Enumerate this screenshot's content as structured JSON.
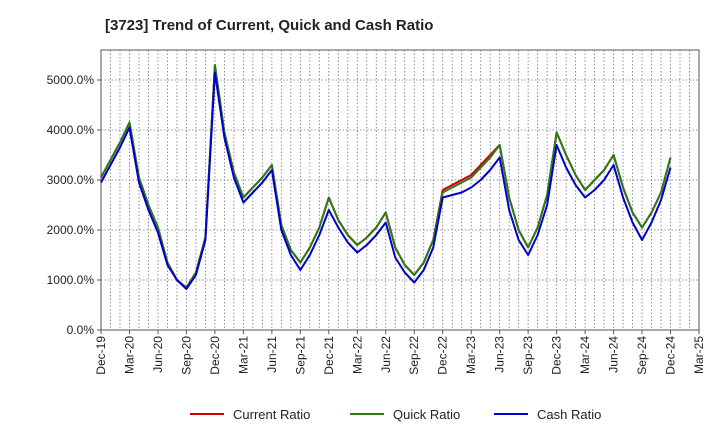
{
  "chart_data": {
    "type": "line",
    "title": "[3723]  Trend of Current, Quick and Cash Ratio",
    "xlabel": "",
    "ylabel": "",
    "ylim": [
      0,
      5600
    ],
    "y_ticks": [
      0,
      1000,
      2000,
      3000,
      4000,
      5000
    ],
    "y_tick_labels": [
      "0.0%",
      "1000.0%",
      "2000.0%",
      "3000.0%",
      "4000.0%",
      "5000.0%"
    ],
    "x_tick_labels": [
      "Dec-19",
      "Mar-20",
      "Jun-20",
      "Sep-20",
      "Dec-20",
      "Mar-21",
      "Jun-21",
      "Sep-21",
      "Dec-21",
      "Mar-22",
      "Jun-22",
      "Sep-22",
      "Dec-22",
      "Mar-23",
      "Jun-23",
      "Sep-23",
      "Dec-23",
      "Mar-24",
      "Jun-24",
      "Sep-24",
      "Dec-24",
      "Mar-25"
    ],
    "x": [
      "Dec-19",
      "Jan-20",
      "Feb-20",
      "Mar-20",
      "Apr-20",
      "May-20",
      "Jun-20",
      "Jul-20",
      "Aug-20",
      "Sep-20",
      "Oct-20",
      "Nov-20",
      "Dec-20",
      "Jan-21",
      "Feb-21",
      "Mar-21",
      "Apr-21",
      "May-21",
      "Jun-21",
      "Jul-21",
      "Aug-21",
      "Sep-21",
      "Oct-21",
      "Nov-21",
      "Dec-21",
      "Jan-22",
      "Feb-22",
      "Mar-22",
      "Apr-22",
      "May-22",
      "Jun-22",
      "Jul-22",
      "Aug-22",
      "Sep-22",
      "Oct-22",
      "Nov-22",
      "Dec-22",
      "Jan-23",
      "Feb-23",
      "Mar-23",
      "Apr-23",
      "May-23",
      "Jun-23",
      "Jul-23",
      "Aug-23",
      "Sep-23",
      "Oct-23",
      "Nov-23",
      "Dec-23",
      "Jan-24",
      "Feb-24",
      "Mar-24",
      "Apr-24",
      "May-24",
      "Jun-24",
      "Jul-24",
      "Aug-24",
      "Sep-24",
      "Oct-24",
      "Nov-24",
      "Dec-24"
    ],
    "grid": true,
    "legend_position": "bottom",
    "series": [
      {
        "name": "Current Ratio",
        "color": "#cc0000",
        "values": [
          3050,
          3400,
          3750,
          4150,
          3050,
          2500,
          2050,
          1350,
          1000,
          850,
          1150,
          1850,
          5300,
          3950,
          3150,
          2650,
          2850,
          3050,
          3300,
          2100,
          1600,
          1350,
          1650,
          2050,
          2650,
          2200,
          1900,
          1700,
          1850,
          2050,
          2350,
          1650,
          1300,
          1100,
          1350,
          1800,
          2800,
          2900,
          3000,
          3100,
          3300,
          3500,
          3700,
          2650,
          2000,
          1650,
          2050,
          2700,
          3950,
          3500,
          3100,
          2800,
          3000,
          3200,
          3500,
          2850,
          2350,
          2050,
          2350,
          2750,
          3450
        ]
      },
      {
        "name": "Quick Ratio",
        "color": "#2a7a1a",
        "values": [
          3050,
          3400,
          3750,
          4150,
          3050,
          2500,
          2050,
          1350,
          1000,
          850,
          1150,
          1850,
          5300,
          3950,
          3150,
          2650,
          2850,
          3050,
          3300,
          2100,
          1600,
          1350,
          1650,
          2050,
          2650,
          2200,
          1900,
          1700,
          1850,
          2050,
          2350,
          1650,
          1300,
          1100,
          1350,
          1800,
          2750,
          2850,
          2950,
          3050,
          3250,
          3450,
          3700,
          2650,
          2000,
          1650,
          2050,
          2700,
          3950,
          3500,
          3100,
          2800,
          3000,
          3200,
          3500,
          2850,
          2350,
          2050,
          2350,
          2750,
          3450
        ]
      },
      {
        "name": "Cash Ratio",
        "color": "#0000cc",
        "values": [
          2950,
          3300,
          3650,
          4050,
          2950,
          2400,
          1950,
          1300,
          1000,
          820,
          1100,
          1800,
          5150,
          3850,
          3050,
          2550,
          2750,
          2950,
          3200,
          2000,
          1500,
          1200,
          1500,
          1900,
          2400,
          2050,
          1750,
          1550,
          1700,
          1900,
          2150,
          1450,
          1150,
          950,
          1200,
          1650,
          2650,
          2700,
          2750,
          2850,
          3000,
          3200,
          3450,
          2400,
          1800,
          1500,
          1900,
          2500,
          3700,
          3250,
          2900,
          2650,
          2800,
          3000,
          3300,
          2650,
          2150,
          1800,
          2150,
          2600,
          3250
        ]
      }
    ]
  }
}
